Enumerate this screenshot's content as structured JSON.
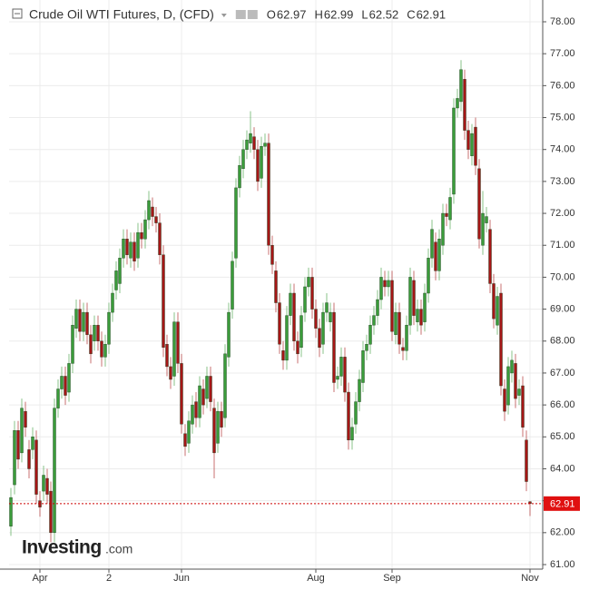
{
  "chart_data": {
    "type": "candlestick",
    "title": "Crude Oil WTI Futures, D, (CFD)",
    "legend_ohlc": [
      {
        "key": "O",
        "value": 62.97
      },
      {
        "key": "H",
        "value": 62.99
      },
      {
        "key": "L",
        "value": 62.52
      },
      {
        "key": "C",
        "value": 62.91
      }
    ],
    "logo": {
      "main": "Investing",
      "suffix": ".com"
    },
    "up_color": "#3a9c3a",
    "down_color": "#a51616",
    "grid": true,
    "xlim": [
      -0.5,
      146.5
    ],
    "xticks": [
      {
        "value": 8,
        "label": "Apr"
      },
      {
        "value": 27,
        "label": "2"
      },
      {
        "value": 47,
        "label": "Jun"
      },
      {
        "value": 84,
        "label": "Aug"
      },
      {
        "value": 105,
        "label": "Sep"
      },
      {
        "value": 143,
        "label": "Nov"
      }
    ],
    "ylim": [
      61,
      78
    ],
    "yticks": [
      {
        "value": 61,
        "label": "61.00"
      },
      {
        "value": 62,
        "label": "62.00"
      },
      {
        "value": 63,
        "label": "63.00"
      },
      {
        "value": 64,
        "label": "64.00"
      },
      {
        "value": 65,
        "label": "65.00"
      },
      {
        "value": 66,
        "label": "66.00"
      },
      {
        "value": 67,
        "label": "67.00"
      },
      {
        "value": 68,
        "label": "68.00"
      },
      {
        "value": 69,
        "label": "69.00"
      },
      {
        "value": 70,
        "label": "70.00"
      },
      {
        "value": 71,
        "label": "71.00"
      },
      {
        "value": 72,
        "label": "72.00"
      },
      {
        "value": 73,
        "label": "73.00"
      },
      {
        "value": 74,
        "label": "74.00"
      },
      {
        "value": 75,
        "label": "75.00"
      },
      {
        "value": 76,
        "label": "76.00"
      },
      {
        "value": 77,
        "label": "77.00"
      },
      {
        "value": 78,
        "label": "78.00"
      }
    ],
    "last_price": 62.91,
    "open": [
      62.2,
      63.5,
      65.2,
      64.5,
      65.8,
      64.6,
      64.6,
      64.9,
      63.0,
      63.3,
      63.7,
      63.3,
      62.0,
      65.9,
      66.5,
      66.9,
      66.4,
      67.3,
      68.4,
      69.0,
      68.3,
      68.9,
      68.2,
      68.0,
      68.5,
      68.0,
      67.5,
      67.9,
      68.9,
      69.6,
      69.8,
      70.6,
      71.2,
      70.6,
      71.1,
      70.6,
      71.4,
      71.2,
      71.8,
      72.2,
      71.9,
      71.7,
      70.7,
      67.9,
      67.2,
      66.9,
      68.6,
      67.3,
      65.1,
      64.8,
      65.4,
      66.1,
      65.6,
      66.5,
      66.2,
      66.9,
      65.9,
      64.8,
      65.8,
      65.6,
      67.5,
      69.0,
      70.6,
      72.8,
      73.4,
      74.0,
      74.2,
      74.4,
      74.0,
      73.1,
      74.1,
      74.2,
      71.0,
      70.2,
      69.2,
      67.7,
      67.4,
      68.8,
      69.5,
      68.0,
      67.8,
      68.9,
      69.7,
      70.0,
      69.0,
      68.4,
      67.9,
      68.9,
      68.6,
      68.9,
      66.8,
      66.9,
      67.5,
      66.4,
      64.9,
      65.4,
      66.1,
      66.7,
      67.7,
      67.9,
      68.5,
      68.8,
      69.3,
      69.9,
      69.7,
      69.9,
      68.2,
      68.9,
      67.8,
      67.7,
      68.5,
      69.9,
      68.6,
      69.0,
      68.6,
      69.5,
      70.6,
      71.1,
      70.2,
      71.0,
      72.0,
      71.8,
      72.6,
      75.3,
      75.5,
      76.2,
      74.6,
      73.8,
      74.7,
      73.4,
      71.0,
      71.7,
      71.5,
      69.8,
      68.5,
      69.5,
      66.5,
      66.0,
      67.0,
      67.3,
      66.3,
      66.6,
      64.9,
      62.97
    ],
    "high": [
      63.4,
      65.5,
      65.5,
      66.2,
      66.1,
      64.9,
      65.3,
      65.2,
      63.3,
      64.1,
      64.0,
      63.6,
      66.2,
      66.8,
      67.2,
      67.2,
      67.6,
      68.8,
      69.3,
      69.3,
      69.2,
      69.2,
      68.5,
      68.8,
      68.8,
      68.3,
      68.2,
      69.2,
      69.8,
      70.5,
      70.9,
      71.5,
      71.5,
      71.4,
      71.4,
      71.7,
      71.7,
      72.1,
      72.7,
      72.5,
      72.2,
      72.0,
      71.0,
      68.2,
      67.5,
      68.9,
      68.9,
      67.6,
      65.4,
      65.8,
      66.3,
      66.4,
      66.9,
      66.8,
      67.2,
      67.2,
      66.2,
      66.1,
      66.1,
      67.9,
      69.2,
      70.8,
      73.1,
      73.8,
      74.3,
      74.6,
      75.2,
      74.7,
      74.3,
      74.4,
      74.5,
      74.5,
      71.3,
      70.5,
      69.5,
      68.0,
      69.1,
      69.8,
      69.8,
      68.3,
      69.1,
      70.0,
      70.3,
      70.3,
      69.3,
      68.7,
      69.2,
      69.5,
      69.2,
      69.2,
      67.2,
      67.8,
      67.8,
      66.7,
      65.6,
      66.4,
      67.1,
      68.0,
      68.2,
      68.8,
      69.1,
      69.6,
      70.3,
      70.2,
      70.2,
      70.2,
      69.2,
      69.2,
      68.1,
      68.8,
      70.3,
      70.2,
      69.3,
      69.3,
      69.8,
      70.9,
      71.8,
      71.4,
      71.5,
      72.3,
      72.3,
      72.8,
      75.6,
      75.9,
      76.8,
      76.5,
      74.9,
      74.8,
      75.0,
      73.7,
      72.7,
      72.2,
      71.8,
      70.1,
      69.7,
      69.8,
      66.8,
      67.5,
      67.7,
      67.6,
      66.8,
      66.9,
      65.2,
      62.99
    ],
    "low": [
      61.9,
      63.2,
      64.0,
      64.2,
      65.0,
      63.7,
      64.3,
      62.9,
      62.5,
      63.0,
      62.9,
      61.7,
      61.7,
      65.6,
      66.2,
      66.0,
      66.1,
      67.0,
      68.1,
      68.0,
      68.0,
      67.9,
      67.3,
      67.7,
      67.7,
      67.2,
      67.2,
      67.6,
      68.6,
      69.3,
      69.5,
      70.3,
      70.4,
      70.3,
      70.2,
      70.3,
      70.9,
      70.9,
      71.5,
      71.6,
      71.4,
      70.4,
      67.5,
      66.9,
      66.5,
      66.6,
      67.0,
      65.1,
      64.4,
      64.5,
      65.1,
      65.3,
      65.3,
      65.7,
      65.9,
      65.8,
      63.7,
      64.5,
      65.0,
      65.3,
      67.2,
      68.7,
      70.3,
      72.5,
      73.1,
      73.7,
      73.9,
      73.7,
      72.7,
      72.8,
      73.8,
      70.7,
      70.1,
      68.9,
      67.6,
      67.1,
      67.1,
      68.5,
      67.7,
      67.3,
      67.5,
      68.6,
      69.4,
      68.7,
      68.1,
      67.5,
      67.6,
      68.6,
      68.3,
      66.4,
      66.5,
      66.6,
      66.1,
      64.6,
      64.6,
      65.1,
      65.8,
      66.4,
      67.4,
      67.6,
      68.2,
      68.5,
      69.0,
      69.4,
      69.4,
      68.0,
      67.9,
      67.6,
      67.4,
      67.4,
      68.2,
      68.5,
      68.3,
      68.2,
      68.3,
      69.2,
      70.3,
      69.9,
      69.9,
      70.7,
      71.6,
      71.5,
      72.3,
      75.0,
      75.2,
      74.3,
      73.7,
      73.5,
      73.2,
      70.9,
      70.7,
      71.4,
      69.5,
      68.4,
      68.2,
      66.3,
      65.5,
      65.7,
      66.7,
      65.9,
      66.0,
      65.0,
      63.3,
      62.52
    ],
    "close": [
      63.1,
      65.2,
      64.3,
      65.9,
      65.3,
      64.0,
      65.0,
      63.2,
      62.8,
      63.8,
      63.2,
      62.0,
      65.9,
      66.5,
      66.9,
      66.3,
      67.3,
      68.5,
      69.0,
      68.3,
      68.9,
      68.2,
      67.6,
      68.5,
      68.0,
      67.5,
      67.9,
      68.9,
      69.5,
      70.2,
      70.6,
      71.2,
      70.7,
      71.1,
      70.5,
      71.4,
      71.2,
      71.8,
      72.4,
      71.9,
      71.7,
      70.7,
      67.8,
      67.2,
      66.8,
      68.6,
      67.3,
      65.4,
      64.7,
      65.5,
      66.0,
      65.6,
      66.6,
      66.0,
      66.9,
      66.1,
      64.5,
      65.8,
      65.3,
      67.6,
      68.9,
      70.5,
      72.8,
      73.5,
      74.0,
      74.3,
      74.5,
      74.0,
      73.0,
      74.1,
      74.2,
      71.0,
      70.4,
      69.2,
      67.9,
      67.4,
      68.8,
      69.5,
      68.0,
      67.6,
      68.8,
      69.7,
      70.0,
      69.0,
      68.4,
      67.8,
      68.9,
      69.2,
      68.9,
      66.7,
      66.9,
      67.5,
      66.4,
      64.9,
      65.3,
      66.1,
      66.8,
      67.7,
      67.9,
      68.5,
      68.8,
      69.3,
      70.0,
      69.7,
      69.9,
      68.3,
      68.9,
      67.9,
      67.7,
      68.5,
      70.0,
      68.8,
      69.0,
      68.5,
      69.5,
      70.6,
      71.5,
      70.2,
      71.2,
      72.0,
      71.9,
      72.5,
      75.3,
      75.6,
      76.5,
      74.6,
      74.0,
      74.5,
      73.5,
      71.2,
      72.0,
      71.9,
      69.8,
      68.7,
      69.4,
      66.6,
      65.8,
      67.2,
      67.4,
      66.2,
      66.5,
      65.3,
      63.6,
      62.91
    ]
  }
}
